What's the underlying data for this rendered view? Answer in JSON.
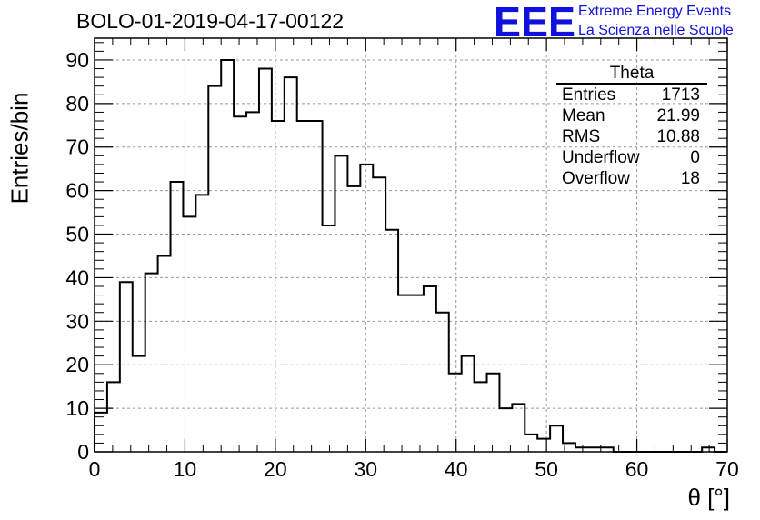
{
  "header": {
    "title": "BOLO-01-2019-04-17-00122",
    "logo_mark": "EEE",
    "logo_line1": "Extreme Energy Events",
    "logo_line2": "La Scienza nelle Scuole"
  },
  "stats_box": {
    "title": "Theta",
    "rows": [
      {
        "label": "Entries",
        "value": "1713"
      },
      {
        "label": "Mean",
        "value": "21.99"
      },
      {
        "label": "RMS",
        "value": "10.88"
      },
      {
        "label": "Underflow",
        "value": "0"
      },
      {
        "label": "Overflow",
        "value": "18"
      }
    ]
  },
  "colors": {
    "logo": "#1111dd",
    "line": "#000000",
    "grid": "#999999"
  },
  "chart_data": {
    "type": "bar",
    "histogram": true,
    "title": "BOLO-01-2019-04-17-00122",
    "xlabel": "θ [°]",
    "ylabel": "Entries/bin",
    "xlim": [
      0,
      70
    ],
    "ylim": [
      0,
      95
    ],
    "grid": true,
    "bin_width": 1.4,
    "x_ticks": [
      0,
      10,
      20,
      30,
      40,
      50,
      60,
      70
    ],
    "y_ticks": [
      0,
      10,
      20,
      30,
      40,
      50,
      60,
      70,
      80,
      90
    ],
    "values": [
      9,
      16,
      39,
      22,
      41,
      45,
      62,
      54,
      59,
      84,
      90,
      77,
      78,
      88,
      76,
      86,
      76,
      76,
      52,
      68,
      61,
      66,
      63,
      51,
      36,
      36,
      38,
      32,
      18,
      22,
      16,
      18,
      10,
      11,
      4,
      3,
      6,
      2,
      1,
      1,
      1,
      0,
      0,
      0,
      0,
      0,
      0,
      0,
      1,
      0
    ]
  }
}
